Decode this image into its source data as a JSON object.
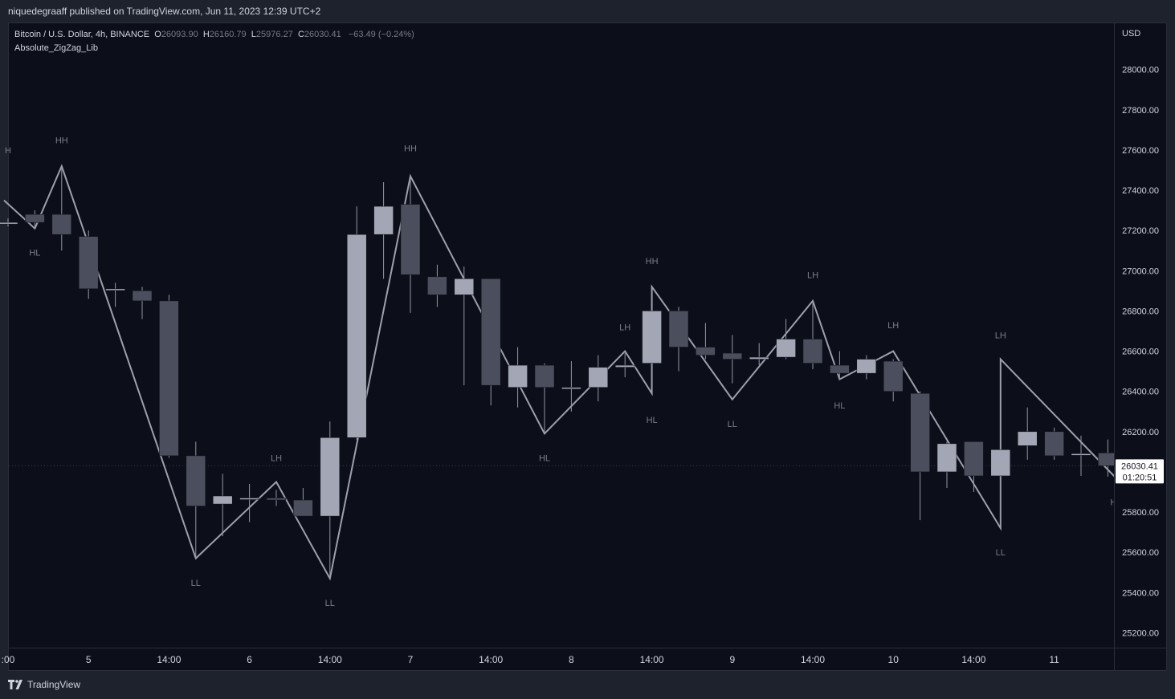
{
  "header": {
    "publisher_line": "niquedegraaff published on TradingView.com, Jun 11, 2023 12:39 UTC+2"
  },
  "legend": {
    "symbol": "Bitcoin / U.S. Dollar, 4h, BINANCE",
    "open_label": "O",
    "open": "26093.90",
    "high_label": "H",
    "high": "26160.79",
    "low_label": "L",
    "low": "25976.27",
    "close_label": "C",
    "close": "26030.41",
    "change": "−63.49 (−0.24%)",
    "indicator": "Absolute_ZigZag_Lib"
  },
  "footer": {
    "brand": "TradingView"
  },
  "colors": {
    "up": "#a3a6b4",
    "down": "#4b4e5c",
    "wick": "#9598a1",
    "zigzag": "#9ea1ad",
    "label": "#7b7e8a",
    "background": "#0c0e1a"
  },
  "chart_data": {
    "type": "candlestick",
    "currency": "USD",
    "ylim": [
      25130,
      28230
    ],
    "y_ticks": [
      25200,
      25400,
      25600,
      25800,
      26000,
      26200,
      26400,
      26600,
      26800,
      27000,
      27200,
      27400,
      27600,
      27800,
      28000
    ],
    "y_tick_labels": [
      "25200.00",
      "25400.00",
      "25600.00",
      "25800.00",
      "26000.00",
      "26200.00",
      "26400.00",
      "26600.00",
      "26800.00",
      "27000.00",
      "27200.00",
      "27400.00",
      "27600.00",
      "27800.00",
      "28000.00"
    ],
    "x_ticks": [
      {
        "index": 0,
        "label": ":00"
      },
      {
        "index": 3,
        "label": "5"
      },
      {
        "index": 6,
        "label": "14:00"
      },
      {
        "index": 9,
        "label": "6"
      },
      {
        "index": 12,
        "label": "14:00"
      },
      {
        "index": 15,
        "label": "7"
      },
      {
        "index": 18,
        "label": "14:00"
      },
      {
        "index": 21,
        "label": "8"
      },
      {
        "index": 24,
        "label": "14:00"
      },
      {
        "index": 27,
        "label": "9"
      },
      {
        "index": 30,
        "label": "14:00"
      },
      {
        "index": 33,
        "label": "10"
      },
      {
        "index": 36,
        "label": "14:00"
      },
      {
        "index": 39,
        "label": "11"
      }
    ],
    "last_price_label": "26030.41",
    "countdown_label": "01:20:51",
    "last_price": 26030.41,
    "candles": [
      {
        "i": 0,
        "o": 27240,
        "h": 27260,
        "l": 27220,
        "c": 27240
      },
      {
        "i": 1,
        "o": 27280,
        "h": 27300,
        "l": 27210,
        "c": 27240
      },
      {
        "i": 2,
        "o": 27280,
        "h": 27510,
        "l": 27100,
        "c": 27180
      },
      {
        "i": 3,
        "o": 27170,
        "h": 27200,
        "l": 26860,
        "c": 26910
      },
      {
        "i": 4,
        "o": 26910,
        "h": 26940,
        "l": 26820,
        "c": 26910
      },
      {
        "i": 5,
        "o": 26900,
        "h": 26920,
        "l": 26760,
        "c": 26850
      },
      {
        "i": 6,
        "o": 26850,
        "h": 26880,
        "l": 26070,
        "c": 26080
      },
      {
        "i": 7,
        "o": 26080,
        "h": 26150,
        "l": 25570,
        "c": 25830
      },
      {
        "i": 8,
        "o": 25840,
        "h": 25990,
        "l": 25680,
        "c": 25880
      },
      {
        "i": 9,
        "o": 25870,
        "h": 25940,
        "l": 25750,
        "c": 25870
      },
      {
        "i": 10,
        "o": 25870,
        "h": 25910,
        "l": 25830,
        "c": 25860
      },
      {
        "i": 11,
        "o": 25860,
        "h": 25920,
        "l": 25780,
        "c": 25780
      },
      {
        "i": 12,
        "o": 25780,
        "h": 26250,
        "l": 25470,
        "c": 26170
      },
      {
        "i": 13,
        "o": 26170,
        "h": 27320,
        "l": 26160,
        "c": 27180
      },
      {
        "i": 14,
        "o": 27180,
        "h": 27440,
        "l": 26960,
        "c": 27320
      },
      {
        "i": 15,
        "o": 27330,
        "h": 27470,
        "l": 26790,
        "c": 26980
      },
      {
        "i": 16,
        "o": 26970,
        "h": 27030,
        "l": 26820,
        "c": 26880
      },
      {
        "i": 17,
        "o": 26880,
        "h": 27020,
        "l": 26430,
        "c": 26960
      },
      {
        "i": 18,
        "o": 26960,
        "h": 26960,
        "l": 26330,
        "c": 26430
      },
      {
        "i": 19,
        "o": 26420,
        "h": 26620,
        "l": 26320,
        "c": 26530
      },
      {
        "i": 20,
        "o": 26530,
        "h": 26540,
        "l": 26200,
        "c": 26420
      },
      {
        "i": 21,
        "o": 26420,
        "h": 26550,
        "l": 26300,
        "c": 26420
      },
      {
        "i": 22,
        "o": 26420,
        "h": 26580,
        "l": 26350,
        "c": 26520
      },
      {
        "i": 23,
        "o": 26520,
        "h": 26590,
        "l": 26470,
        "c": 26530
      },
      {
        "i": 24,
        "o": 26540,
        "h": 26810,
        "l": 26520,
        "c": 26800
      },
      {
        "i": 25,
        "o": 26800,
        "h": 26820,
        "l": 26500,
        "c": 26620
      },
      {
        "i": 26,
        "o": 26620,
        "h": 26740,
        "l": 26560,
        "c": 26580
      },
      {
        "i": 27,
        "o": 26590,
        "h": 26680,
        "l": 26440,
        "c": 26560
      },
      {
        "i": 28,
        "o": 26560,
        "h": 26640,
        "l": 26530,
        "c": 26570
      },
      {
        "i": 29,
        "o": 26570,
        "h": 26760,
        "l": 26560,
        "c": 26660
      },
      {
        "i": 30,
        "o": 26660,
        "h": 26840,
        "l": 26510,
        "c": 26540
      },
      {
        "i": 31,
        "o": 26530,
        "h": 26600,
        "l": 26460,
        "c": 26490
      },
      {
        "i": 32,
        "o": 26490,
        "h": 26580,
        "l": 26460,
        "c": 26560
      },
      {
        "i": 33,
        "o": 26550,
        "h": 26560,
        "l": 26350,
        "c": 26400
      },
      {
        "i": 34,
        "o": 26390,
        "h": 26400,
        "l": 25760,
        "c": 26000
      },
      {
        "i": 35,
        "o": 26000,
        "h": 26150,
        "l": 25920,
        "c": 26140
      },
      {
        "i": 36,
        "o": 26150,
        "h": 26150,
        "l": 25900,
        "c": 25980
      },
      {
        "i": 37,
        "o": 25980,
        "h": 26120,
        "l": 25730,
        "c": 26110
      },
      {
        "i": 38,
        "o": 26130,
        "h": 26320,
        "l": 26060,
        "c": 26200
      },
      {
        "i": 39,
        "o": 26200,
        "h": 26220,
        "l": 26060,
        "c": 26080
      },
      {
        "i": 40,
        "o": 26090,
        "h": 26180,
        "l": 25980,
        "c": 26090
      },
      {
        "i": 41,
        "o": 26093.9,
        "h": 26160.79,
        "l": 25976.27,
        "c": 26030.41
      }
    ],
    "zigzag": [
      {
        "i": -0.15,
        "p": 27350
      },
      {
        "i": 1,
        "p": 27210
      },
      {
        "i": 2,
        "p": 27520
      },
      {
        "i": 7,
        "p": 25570
      },
      {
        "i": 10,
        "p": 25950
      },
      {
        "i": 12,
        "p": 25470
      },
      {
        "i": 15,
        "p": 27470
      },
      {
        "i": 20,
        "p": 26190
      },
      {
        "i": 23,
        "p": 26600
      },
      {
        "i": 24,
        "p": 26390
      },
      {
        "i": 24,
        "p": 26920
      },
      {
        "i": 27,
        "p": 26360
      },
      {
        "i": 30,
        "p": 26850
      },
      {
        "i": 31,
        "p": 26460
      },
      {
        "i": 33,
        "p": 26600
      },
      {
        "i": 37,
        "p": 25720
      },
      {
        "i": 37,
        "p": 26560
      },
      {
        "i": 41.3,
        "p": 25970
      }
    ],
    "pivot_labels": [
      {
        "i": 0,
        "p": 27600,
        "text": "H"
      },
      {
        "i": 2,
        "p": 27650,
        "text": "HH"
      },
      {
        "i": 1,
        "p": 27090,
        "text": "HL"
      },
      {
        "i": 7,
        "p": 25450,
        "text": "LL"
      },
      {
        "i": 10,
        "p": 26070,
        "text": "LH"
      },
      {
        "i": 12,
        "p": 25350,
        "text": "LL"
      },
      {
        "i": 15,
        "p": 27610,
        "text": "HH"
      },
      {
        "i": 20,
        "p": 26070,
        "text": "HL"
      },
      {
        "i": 23,
        "p": 26720,
        "text": "LH"
      },
      {
        "i": 24,
        "p": 27050,
        "text": "HH"
      },
      {
        "i": 24,
        "p": 26260,
        "text": "HL"
      },
      {
        "i": 27,
        "p": 26240,
        "text": "LL"
      },
      {
        "i": 30,
        "p": 26980,
        "text": "LH"
      },
      {
        "i": 31,
        "p": 26330,
        "text": "HL"
      },
      {
        "i": 33,
        "p": 26730,
        "text": "LH"
      },
      {
        "i": 37,
        "p": 25600,
        "text": "LL"
      },
      {
        "i": 37,
        "p": 26680,
        "text": "LH"
      },
      {
        "i": 41.3,
        "p": 25850,
        "text": "HL"
      }
    ]
  }
}
